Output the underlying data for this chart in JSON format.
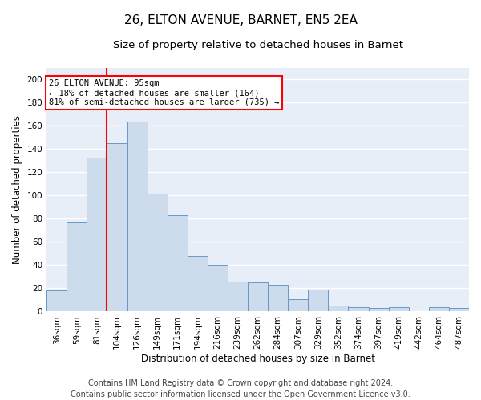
{
  "title_line1": "26, ELTON AVENUE, BARNET, EN5 2EA",
  "title_line2": "Size of property relative to detached houses in Barnet",
  "xlabel": "Distribution of detached houses by size in Barnet",
  "ylabel": "Number of detached properties",
  "footer_line1": "Contains HM Land Registry data © Crown copyright and database right 2024.",
  "footer_line2": "Contains public sector information licensed under the Open Government Licence v3.0.",
  "bar_labels": [
    "36sqm",
    "59sqm",
    "81sqm",
    "104sqm",
    "126sqm",
    "149sqm",
    "171sqm",
    "194sqm",
    "216sqm",
    "239sqm",
    "262sqm",
    "284sqm",
    "307sqm",
    "329sqm",
    "352sqm",
    "374sqm",
    "397sqm",
    "419sqm",
    "442sqm",
    "464sqm",
    "487sqm"
  ],
  "bar_values": [
    18,
    77,
    133,
    145,
    164,
    102,
    83,
    48,
    40,
    26,
    25,
    23,
    11,
    19,
    5,
    4,
    3,
    4,
    0,
    4,
    3
  ],
  "bar_color": "#ccdcec",
  "bar_edge_color": "#6699cc",
  "vline_color": "red",
  "vline_x_index": 2,
  "annotation_text": "26 ELTON AVENUE: 95sqm\n← 18% of detached houses are smaller (164)\n81% of semi-detached houses are larger (735) →",
  "annotation_box_color": "white",
  "annotation_box_edge_color": "red",
  "ylim": [
    0,
    210
  ],
  "yticks": [
    0,
    20,
    40,
    60,
    80,
    100,
    120,
    140,
    160,
    180,
    200
  ],
  "background_color": "#e8eef8",
  "grid_color": "white",
  "title_fontsize": 11,
  "subtitle_fontsize": 9.5,
  "axis_label_fontsize": 8.5,
  "tick_fontsize": 7.5,
  "footer_fontsize": 7
}
